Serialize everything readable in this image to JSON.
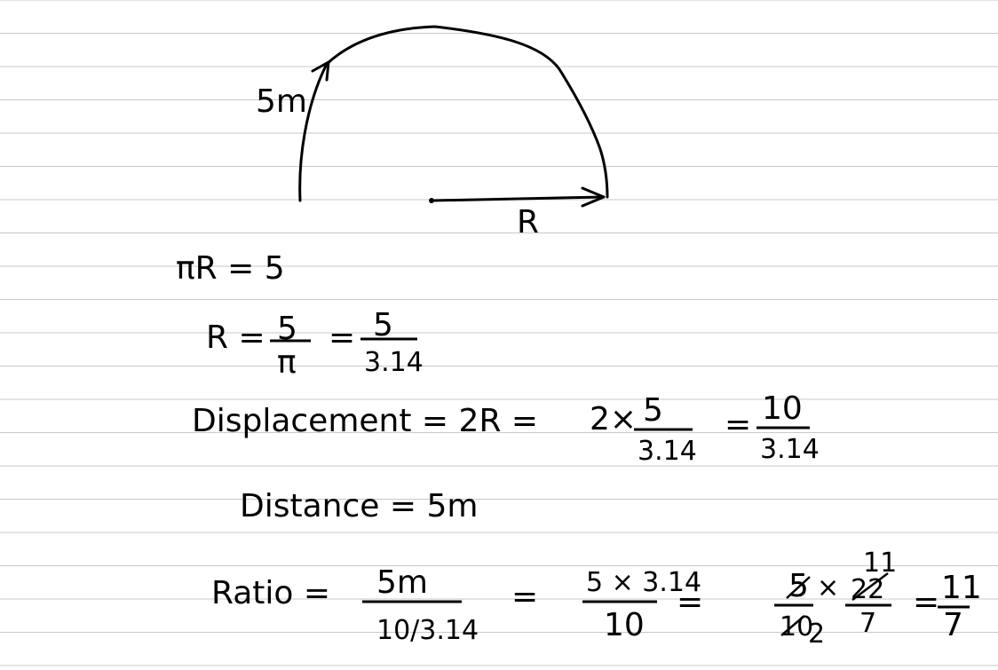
{
  "page": {
    "background": "#ffffff",
    "rule_color": "#c8c8c8",
    "ink_color": "#000000"
  },
  "figure": {
    "path_label": "5m",
    "radius_label": "R"
  },
  "equations": {
    "line1": "πR = 5",
    "line2": {
      "lhs": "R =",
      "f1_num": "5",
      "f1_den": "π",
      "eq": "=",
      "f2_num": "5",
      "f2_den": "3.14"
    },
    "line3": {
      "lhs": "Displacement = 2R =",
      "term": "2×",
      "f1_num": "5",
      "f1_den": "3.14",
      "eq": "=",
      "f2_num": "10",
      "f2_den": "3.14"
    },
    "line4": "Distance = 5m",
    "line5": {
      "lhs": "Ratio =",
      "f1_num": "5m",
      "f1_den": "10/3.14",
      "eq1": "=",
      "f2_num": "5 × 3.14",
      "f2_den": "10",
      "eq2": "=",
      "f3_num_a": "5",
      "f3_den_a": "10",
      "f3_den_a_cancel": "2",
      "times": "×",
      "f3_num_b": "22",
      "f3_num_b_cancel": "11",
      "f3_den_b": "7",
      "eq3": "=",
      "result_num": "11",
      "result_den": "7"
    }
  }
}
